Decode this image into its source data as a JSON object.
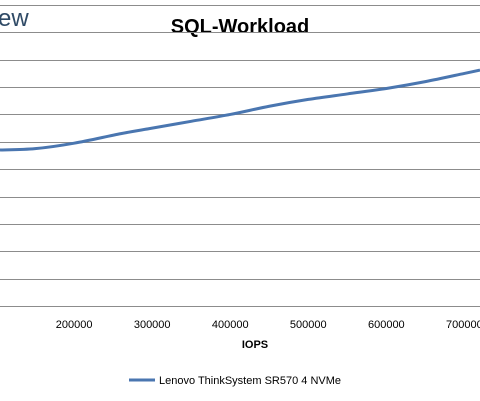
{
  "logo": {
    "text": "ew"
  },
  "chart_data": {
    "type": "line",
    "title": "SQL-Workload",
    "xlabel": "IOPS",
    "ylabel": "",
    "x_ticks": [
      200000,
      300000,
      400000,
      500000,
      600000,
      700000
    ],
    "x_tick_labels": [
      "200000",
      "300000",
      "400000",
      "500000",
      "600000",
      "700000"
    ],
    "xlim": [
      105000,
      720000
    ],
    "ylim": [
      0,
      11
    ],
    "grid": true,
    "legend_position": "bottom",
    "series": [
      {
        "name": "Lenovo ThinkSystem SR570 4 NVMe",
        "color": "#4a76b0",
        "x": [
          105000,
          150000,
          200000,
          260000,
          300000,
          350000,
          400000,
          450000,
          500000,
          550000,
          600000,
          650000,
          700000,
          720000
        ],
        "y": [
          5.7,
          5.75,
          5.95,
          6.3,
          6.5,
          6.75,
          7.0,
          7.3,
          7.55,
          7.75,
          7.95,
          8.2,
          8.5,
          8.62
        ]
      }
    ]
  }
}
